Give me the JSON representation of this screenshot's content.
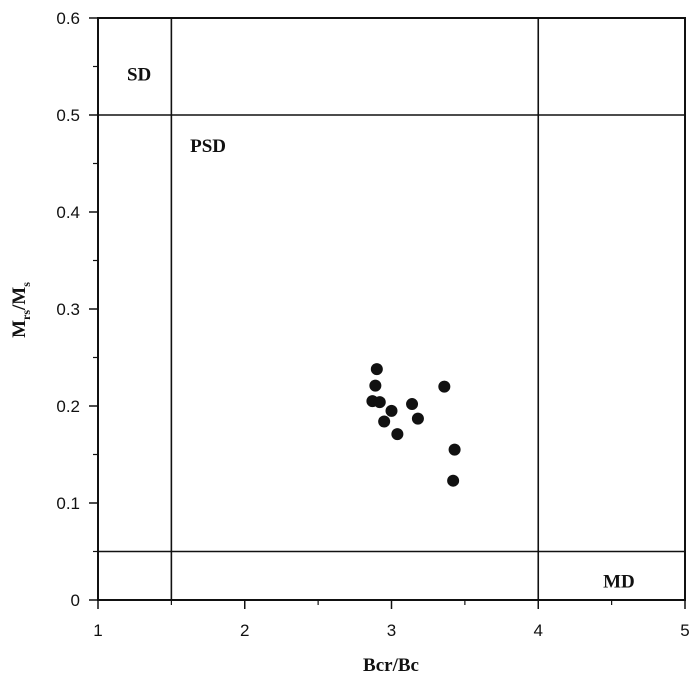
{
  "chart_data": {
    "type": "scatter",
    "xlabel": "Bcr/Bc",
    "ylabel": {
      "m1": "M",
      "sub1": "rs",
      "sep": "/M",
      "sub2": "s"
    },
    "xlim": [
      1,
      5
    ],
    "ylim": [
      0,
      0.6
    ],
    "x_ticks": [
      1,
      2,
      3,
      4,
      5
    ],
    "y_ticks": [
      0,
      0.1,
      0.2,
      0.3,
      0.4,
      0.5,
      0.6
    ],
    "x_tick_labels": [
      "1",
      "2",
      "3",
      "4",
      "5"
    ],
    "y_tick_labels": [
      "0",
      "0.1",
      "0.2",
      "0.3",
      "0.4",
      "0.5",
      "0.6"
    ],
    "boundary_lines": {
      "x": [
        1.5,
        4.0
      ],
      "y": [
        0.05,
        0.5
      ]
    },
    "regions": [
      {
        "label": "SD",
        "x": 1.28,
        "y": 0.543
      },
      {
        "label": "PSD",
        "x": 1.75,
        "y": 0.469
      },
      {
        "label": "MD",
        "x": 4.55,
        "y": 0.02
      }
    ],
    "points": [
      {
        "x": 2.9,
        "y": 0.238
      },
      {
        "x": 2.89,
        "y": 0.221
      },
      {
        "x": 2.87,
        "y": 0.205
      },
      {
        "x": 2.92,
        "y": 0.204
      },
      {
        "x": 2.95,
        "y": 0.184
      },
      {
        "x": 3.0,
        "y": 0.195
      },
      {
        "x": 3.04,
        "y": 0.171
      },
      {
        "x": 3.14,
        "y": 0.202
      },
      {
        "x": 3.18,
        "y": 0.187
      },
      {
        "x": 3.36,
        "y": 0.22
      },
      {
        "x": 3.43,
        "y": 0.155
      },
      {
        "x": 3.42,
        "y": 0.123
      }
    ],
    "marker_color": "#111111",
    "grid": false
  }
}
